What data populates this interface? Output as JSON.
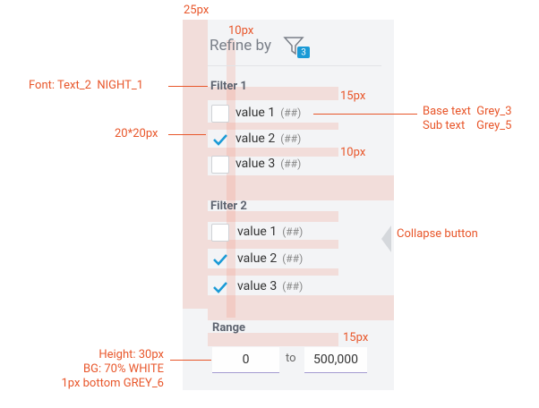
{
  "annotations": {
    "top_padding": "25px",
    "header_padding": "10px",
    "font_note": "Font: Text_2  NIGHT_1",
    "item_padding": "15px",
    "base_text": "Base text  Grey_3",
    "sub_text": "Sub text    Grey_5",
    "checkbox_size": "20*20px",
    "group_padding": "10px",
    "collapse": "Collapse button",
    "range_padding": "15px",
    "input_spec": [
      "Height: 30px",
      "BG: 70% WHITE",
      "1px bottom GREY_6"
    ]
  },
  "panel": {
    "title": "Refine by",
    "badge": "3",
    "filters": [
      {
        "title": "Filter 1",
        "options": [
          {
            "label": "value 1",
            "count": "(##)",
            "checked": false
          },
          {
            "label": "value 2",
            "count": "(##)",
            "checked": true
          },
          {
            "label": "value 3",
            "count": "(##)",
            "checked": false
          }
        ]
      },
      {
        "title": "Filter 2",
        "options": [
          {
            "label": "value 1",
            "count": "(##)",
            "checked": false
          },
          {
            "label": "value 2",
            "count": "(##)",
            "checked": true
          },
          {
            "label": "value 3",
            "count": "(##)",
            "checked": true
          }
        ]
      }
    ],
    "range": {
      "title": "Range",
      "min": "0",
      "separator": "to",
      "max": "500,000"
    }
  }
}
